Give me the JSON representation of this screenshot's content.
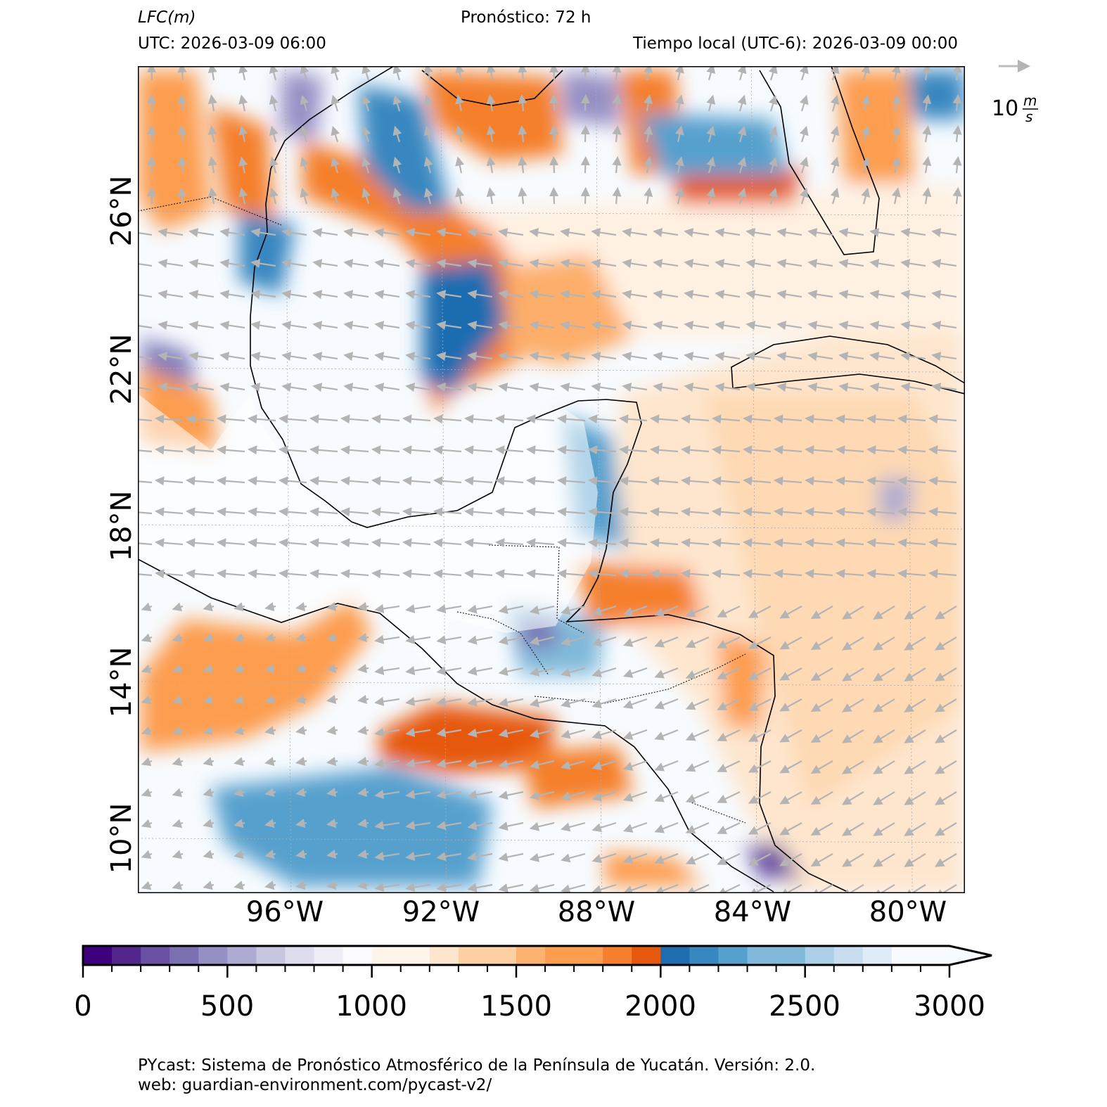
{
  "header": {
    "variable": "LFC",
    "unit": "m",
    "forecast": "Pronóstico: 72 h",
    "utc": "UTC:  2026-03-09 06:00",
    "local": "Tiempo local (UTC-6): 2026-03-09 00:00"
  },
  "wind_key": {
    "value": "10",
    "unit_num": "m",
    "unit_den": "s",
    "color": "#bdbdbd"
  },
  "map": {
    "extent_lon": [
      -99.8,
      -78.5
    ],
    "extent_lat": [
      8.6,
      29.7
    ],
    "lat_labels": [
      "26°N",
      "22°N",
      "18°N",
      "14°N",
      "10°N"
    ],
    "lon_labels": [
      "96°W",
      "92°W",
      "88°W",
      "84°W",
      "80°W"
    ],
    "gridlines": true
  },
  "colorbar": {
    "min": 0,
    "max": 3000,
    "step": 100,
    "extend": "max",
    "tick_labels": [
      "0",
      "500",
      "1000",
      "1500",
      "2000",
      "2500",
      "3000"
    ],
    "colors": [
      "#3f007d",
      "#54278f",
      "#6a51a3",
      "#7b70b1",
      "#9590c4",
      "#adabd2",
      "#c6c6e1",
      "#dedded",
      "#efedf5",
      "#fcfbfd",
      "#fff5eb",
      "#fff5eb",
      "#fee6ce",
      "#fdd0a2",
      "#fdd0a2",
      "#fdb26f",
      "#fd9d50",
      "#fd9d50",
      "#f57f2c",
      "#e6580e",
      "#1f6db0",
      "#3787c0",
      "#56a0ce",
      "#80b9da",
      "#80b9da",
      "#abcfe6",
      "#c9ddf0",
      "#dfebf7",
      "#f7fbff",
      "#f7fbff"
    ],
    "over_color": "#f7fbff"
  },
  "footer": {
    "line1": "PYcast: Sistema de Pronóstico Atmosférico de la Península de Yucatán. Versión: 2.0.",
    "line2": "web: guardian-environment.com/pycast-v2/"
  }
}
